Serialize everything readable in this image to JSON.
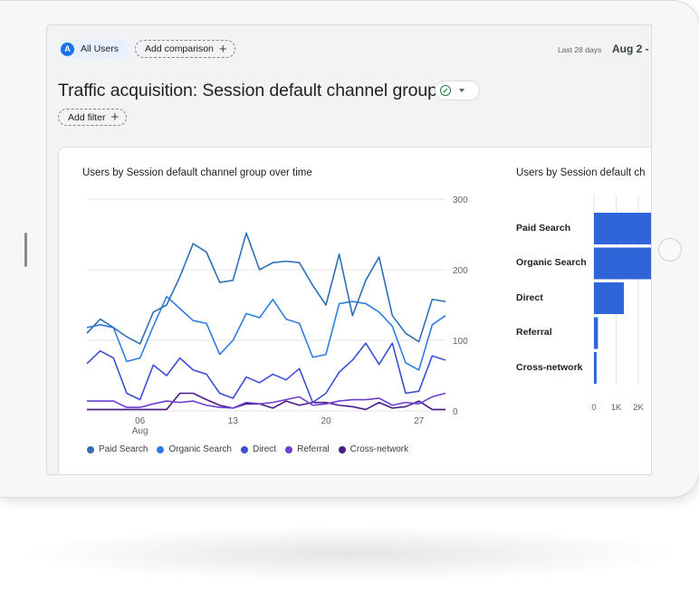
{
  "header": {
    "segment_avatar": "A",
    "segment_label": "All Users",
    "add_comparison_label": "Add comparison",
    "date_range_label": "Last 28 days",
    "date_range_value": "Aug 2 -"
  },
  "page": {
    "title": "Traffic acquisition: Session default channel group",
    "add_filter_label": "Add filter"
  },
  "line_card": {
    "title": "Users by Session default channel group over time"
  },
  "bar_card": {
    "title": "Users by Session default ch"
  },
  "colors": {
    "paid_search": "#2f6fb3",
    "organic_search": "#2f7de1",
    "direct": "#3c4fd6",
    "referral": "#6b3fd1",
    "cross_network": "#4b1a89",
    "bar": "#2f65d9"
  },
  "chart_data": [
    {
      "type": "line",
      "title": "Users by Session default channel group over time",
      "x_ticks": [
        {
          "day": 6,
          "label": "06",
          "sublabel": "Aug"
        },
        {
          "day": 13,
          "label": "13",
          "sublabel": ""
        },
        {
          "day": 20,
          "label": "20",
          "sublabel": ""
        },
        {
          "day": 27,
          "label": "27",
          "sublabel": ""
        }
      ],
      "x_range": [
        2,
        29
      ],
      "ylim": [
        0,
        300
      ],
      "y_ticks": [
        0,
        100,
        200,
        300
      ],
      "grid": true,
      "legend_position": "bottom",
      "series": [
        {
          "name": "Paid Search",
          "color": "#2f6fb3",
          "values": [
            110,
            130,
            118,
            105,
            95,
            140,
            150,
            190,
            237,
            225,
            182,
            185,
            252,
            200,
            210,
            212,
            210,
            178,
            150,
            222,
            135,
            185,
            218,
            135,
            110,
            98,
            158,
            155
          ]
        },
        {
          "name": "Organic Search",
          "color": "#2f7de1",
          "values": [
            118,
            122,
            118,
            70,
            75,
            120,
            162,
            145,
            128,
            124,
            80,
            100,
            138,
            132,
            158,
            130,
            124,
            76,
            80,
            152,
            155,
            152,
            140,
            120,
            68,
            58,
            122,
            135
          ]
        },
        {
          "name": "Direct",
          "color": "#3c4fd6",
          "values": [
            67,
            85,
            75,
            25,
            16,
            65,
            50,
            75,
            58,
            52,
            25,
            18,
            48,
            40,
            52,
            44,
            60,
            12,
            25,
            55,
            72,
            96,
            66,
            96,
            25,
            28,
            78,
            72
          ]
        },
        {
          "name": "Referral",
          "color": "#6b3fd1",
          "values": [
            14,
            14,
            14,
            5,
            5,
            10,
            14,
            12,
            14,
            8,
            5,
            4,
            12,
            10,
            12,
            16,
            20,
            8,
            10,
            14,
            16,
            16,
            18,
            8,
            12,
            10,
            20,
            25
          ]
        },
        {
          "name": "Cross-network",
          "color": "#4b1a89",
          "values": [
            2,
            2,
            2,
            2,
            2,
            2,
            2,
            25,
            25,
            16,
            8,
            4,
            10,
            10,
            4,
            14,
            8,
            12,
            12,
            8,
            6,
            2,
            12,
            4,
            6,
            14,
            2,
            2
          ]
        }
      ]
    },
    {
      "type": "bar",
      "orientation": "horizontal",
      "title": "Users by Session default ch",
      "categories": [
        "Paid Search",
        "Organic Search",
        "Direct",
        "Referral",
        "Cross-network"
      ],
      "values": [
        3800,
        3000,
        1350,
        180,
        120
      ],
      "x_ticks": [
        {
          "value": 0,
          "label": "0"
        },
        {
          "value": 1000,
          "label": "1K"
        },
        {
          "value": 2000,
          "label": "2K"
        }
      ],
      "color": "#2f65d9"
    }
  ]
}
